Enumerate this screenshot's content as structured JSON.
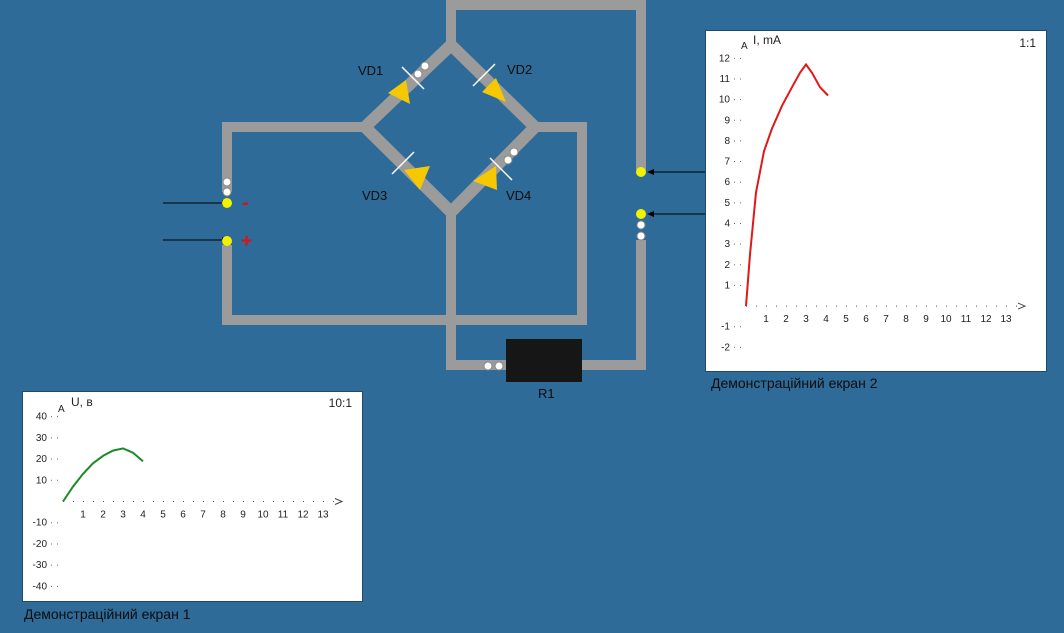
{
  "circuit": {
    "diodes": [
      {
        "label": "VD1"
      },
      {
        "label": "VD2"
      },
      {
        "label": "VD3"
      },
      {
        "label": "VD4"
      }
    ],
    "resistor_label": "R1",
    "polarity_minus": "-",
    "polarity_plus": "+",
    "colors": {
      "wire": "#9b9b9b",
      "diode": "#f6c800",
      "node": "#f2f200",
      "minus": "#e01010",
      "plus": "#e01010",
      "resistor": "#161616"
    }
  },
  "screen1": {
    "caption": "Демонстраційний екран 1",
    "ratio": "10:1",
    "y_axis_label": "U, в",
    "axis_letter": "A",
    "color": "#1c8a2a",
    "chart_data": {
      "type": "line",
      "xlabel": "",
      "ylabel": "U, в",
      "x_ticks": [
        1,
        2,
        3,
        4,
        5,
        6,
        7,
        8,
        9,
        10,
        11,
        12,
        13
      ],
      "y_ticks": [
        40,
        30,
        20,
        10,
        -10,
        -20,
        -30,
        -40
      ],
      "xlim": [
        0,
        13.5
      ],
      "ylim": [
        -45,
        45
      ],
      "series": [
        {
          "x": [
            0,
            0.5,
            1,
            1.5,
            2,
            2.5,
            3,
            3.5,
            4
          ],
          "y": [
            0,
            7,
            13,
            18,
            21.5,
            24,
            25,
            23,
            19
          ]
        }
      ]
    }
  },
  "screen2": {
    "caption": "Демонстраційний екран 2",
    "ratio": "1:1",
    "y_axis_label": "I, mA",
    "axis_letter": "A",
    "color": "#e01818",
    "chart_data": {
      "type": "line",
      "xlabel": "",
      "ylabel": "I, mA",
      "x_ticks": [
        1,
        2,
        3,
        4,
        5,
        6,
        7,
        8,
        9,
        10,
        11,
        12,
        13
      ],
      "y_ticks": [
        12,
        11,
        10,
        9,
        8,
        7,
        6,
        5,
        4,
        3,
        2,
        1,
        -1,
        -2
      ],
      "xlim": [
        0,
        13.5
      ],
      "ylim": [
        -3,
        12.5
      ],
      "series": [
        {
          "x": [
            0,
            0.2,
            0.5,
            0.9,
            1.3,
            1.8,
            2.3,
            2.7,
            3,
            3.3,
            3.7,
            4.1
          ],
          "y": [
            0,
            2.5,
            5.5,
            7.5,
            8.6,
            9.7,
            10.6,
            11.3,
            11.7,
            11.3,
            10.6,
            10.2
          ]
        }
      ]
    }
  }
}
